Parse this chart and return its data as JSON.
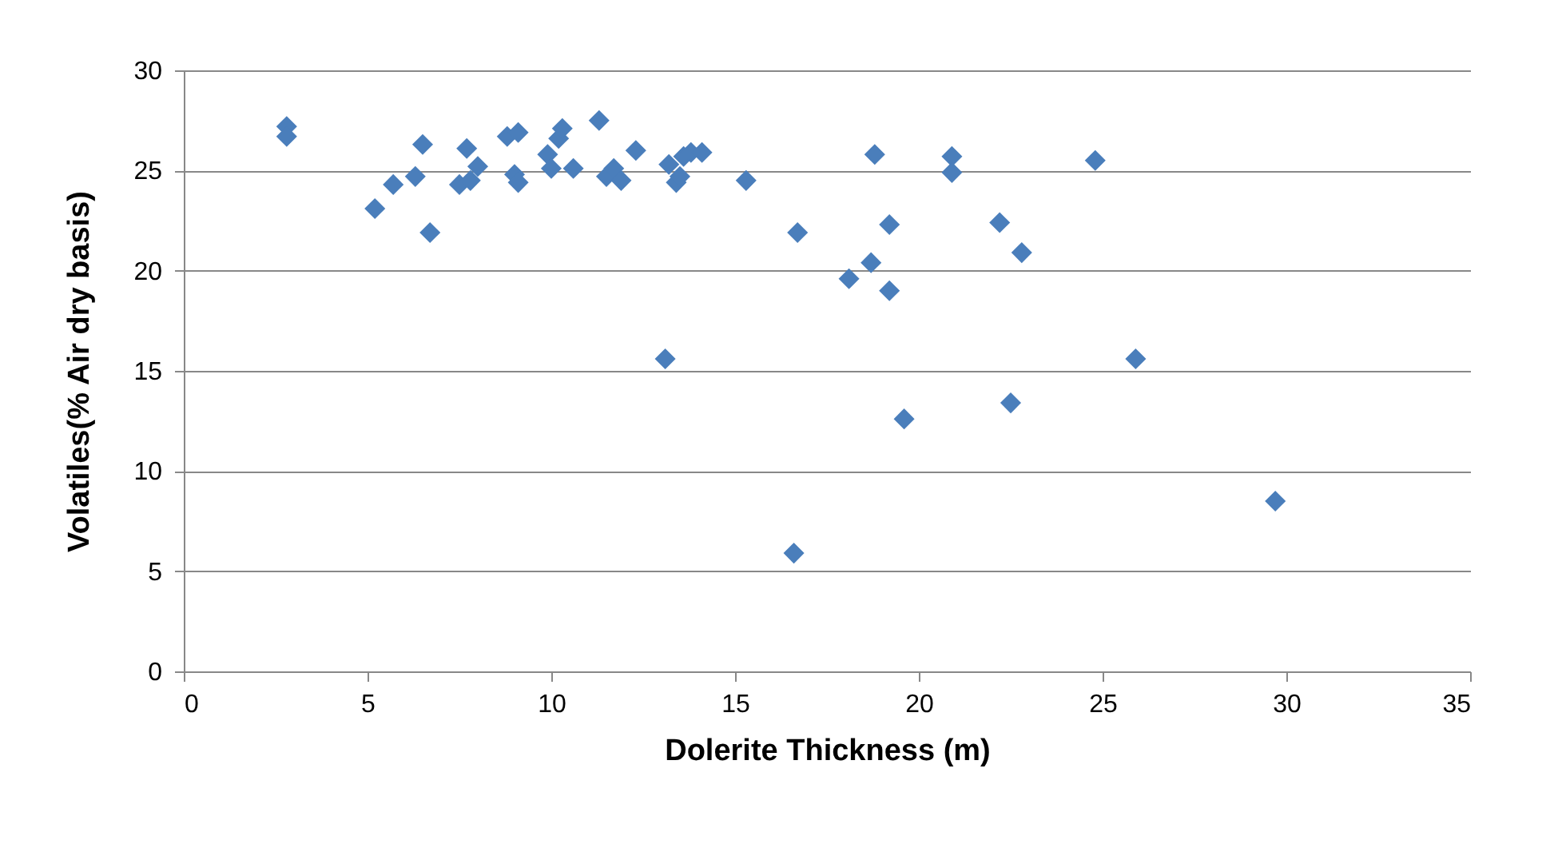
{
  "chart_data": {
    "type": "scatter",
    "xlabel": "Dolerite Thickness (m)",
    "ylabel": "Volatiles(% Air dry basis)",
    "xlim": [
      0,
      35
    ],
    "xticks": [
      0,
      5,
      10,
      15,
      20,
      25,
      30,
      35
    ],
    "ylim": [
      0,
      30
    ],
    "yticks": [
      0,
      5,
      10,
      15,
      20,
      25,
      30
    ],
    "grid": "y",
    "marker": "diamond",
    "series": [
      {
        "color": "#4a7ebb",
        "x": [
          2.8,
          2.8,
          5.2,
          5.7,
          6.3,
          6.5,
          6.7,
          7.5,
          7.7,
          7.8,
          8.0,
          8.8,
          9.0,
          9.1,
          9.1,
          9.9,
          10.0,
          10.2,
          10.3,
          10.6,
          11.3,
          11.5,
          11.7,
          11.9,
          12.3,
          13.2,
          13.4,
          13.5,
          13.6,
          13.8,
          14.1,
          13.1,
          15.3,
          16.7,
          16.6,
          18.1,
          18.7,
          18.8,
          19.2,
          19.2,
          19.6,
          20.9,
          20.9,
          22.2,
          22.5,
          22.8,
          24.8,
          25.9,
          29.7
        ],
        "values": [
          27.2,
          26.7,
          23.1,
          24.3,
          24.7,
          26.3,
          21.9,
          24.3,
          26.1,
          24.5,
          25.2,
          26.7,
          24.8,
          26.9,
          24.4,
          25.8,
          25.1,
          26.6,
          27.1,
          25.1,
          27.5,
          24.7,
          25.1,
          24.5,
          26.0,
          25.3,
          24.4,
          24.7,
          25.7,
          25.9,
          25.9,
          15.6,
          24.5,
          21.9,
          5.9,
          19.6,
          20.4,
          25.8,
          22.3,
          19.0,
          12.6,
          25.7,
          24.9,
          22.4,
          13.4,
          20.9,
          25.5,
          15.6,
          8.5
        ]
      }
    ]
  }
}
